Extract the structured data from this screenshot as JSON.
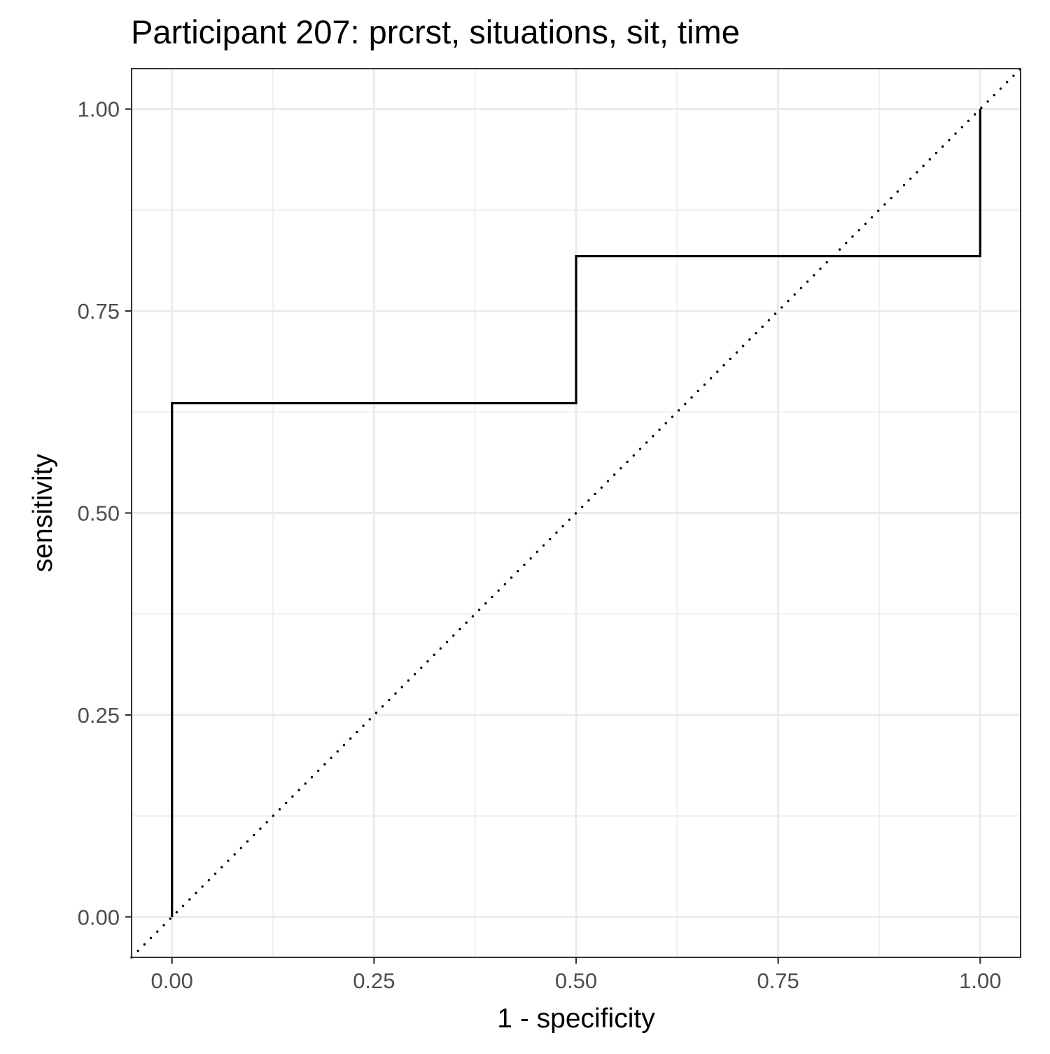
{
  "chart_data": {
    "type": "line",
    "title": "Participant 207: prcrst, situations, sit, time",
    "xlabel": "1 - specificity",
    "ylabel": "sensitivity",
    "xlim": [
      -0.05,
      1.05
    ],
    "ylim": [
      -0.05,
      1.05
    ],
    "x_ticks": [
      0.0,
      0.25,
      0.5,
      0.75,
      1.0
    ],
    "x_tick_labels": [
      "0.00",
      "0.25",
      "0.50",
      "0.75",
      "1.00"
    ],
    "y_ticks": [
      0.0,
      0.25,
      0.5,
      0.75,
      1.0
    ],
    "y_tick_labels": [
      "0.00",
      "0.25",
      "0.50",
      "0.75",
      "1.00"
    ],
    "grid": true,
    "series": [
      {
        "style": "solid-step",
        "color": "#000000",
        "x": [
          0.0,
          0.0,
          0.5,
          0.5,
          1.0,
          1.0
        ],
        "y": [
          0.0,
          0.636,
          0.636,
          0.818,
          0.818,
          1.0
        ]
      },
      {
        "style": "dotted-diagonal",
        "color": "#000000",
        "x": [
          -0.05,
          1.05
        ],
        "y": [
          -0.05,
          1.05
        ]
      }
    ]
  }
}
